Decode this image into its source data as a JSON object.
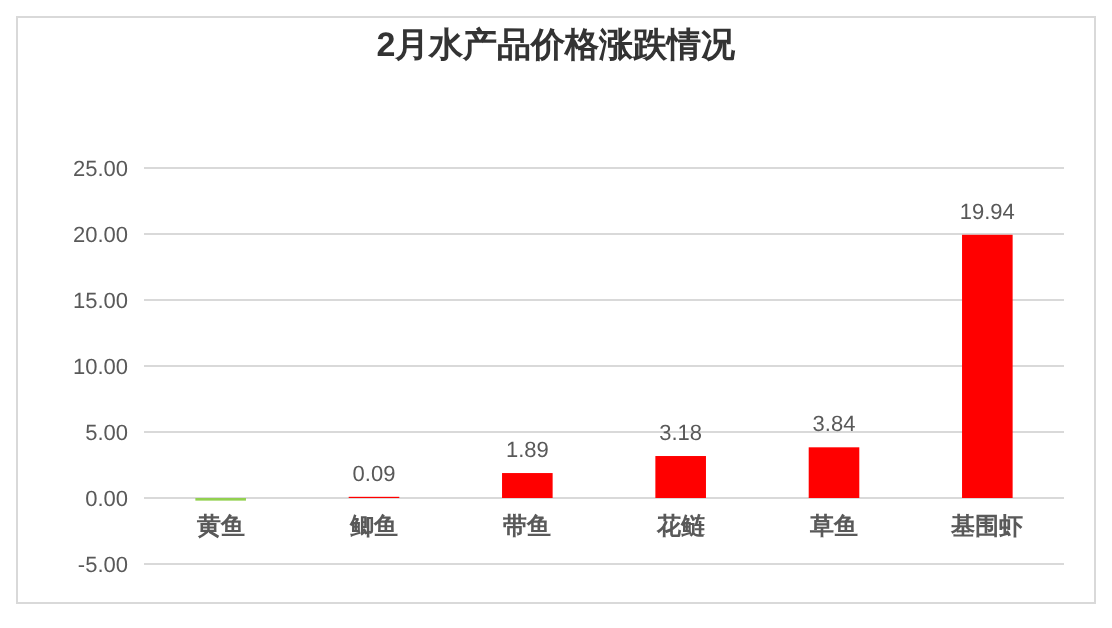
{
  "chart_data": {
    "type": "bar",
    "title": "2月水产品价格涨跌情况",
    "categories": [
      "黄鱼",
      "鲫鱼",
      "带鱼",
      "花鲢",
      "草鱼",
      "基围虾"
    ],
    "values": [
      -0.2,
      0.09,
      1.89,
      3.18,
      3.84,
      19.94
    ],
    "colors": [
      "#92d050",
      "#ff0000",
      "#ff0000",
      "#ff0000",
      "#ff0000",
      "#ff0000"
    ],
    "value_labels": [
      null,
      "0.09",
      "1.89",
      "3.18",
      "3.84",
      "19.94"
    ],
    "ylim": [
      -5,
      25
    ],
    "yticks": [
      {
        "value": -5,
        "label": "-5.00"
      },
      {
        "value": 0,
        "label": "0.00"
      },
      {
        "value": 5,
        "label": "5.00"
      },
      {
        "value": 10,
        "label": "10.00"
      },
      {
        "value": 15,
        "label": "15.00"
      },
      {
        "value": 20,
        "label": "20.00"
      },
      {
        "value": 25,
        "label": "25.00"
      }
    ],
    "grid": "y"
  }
}
